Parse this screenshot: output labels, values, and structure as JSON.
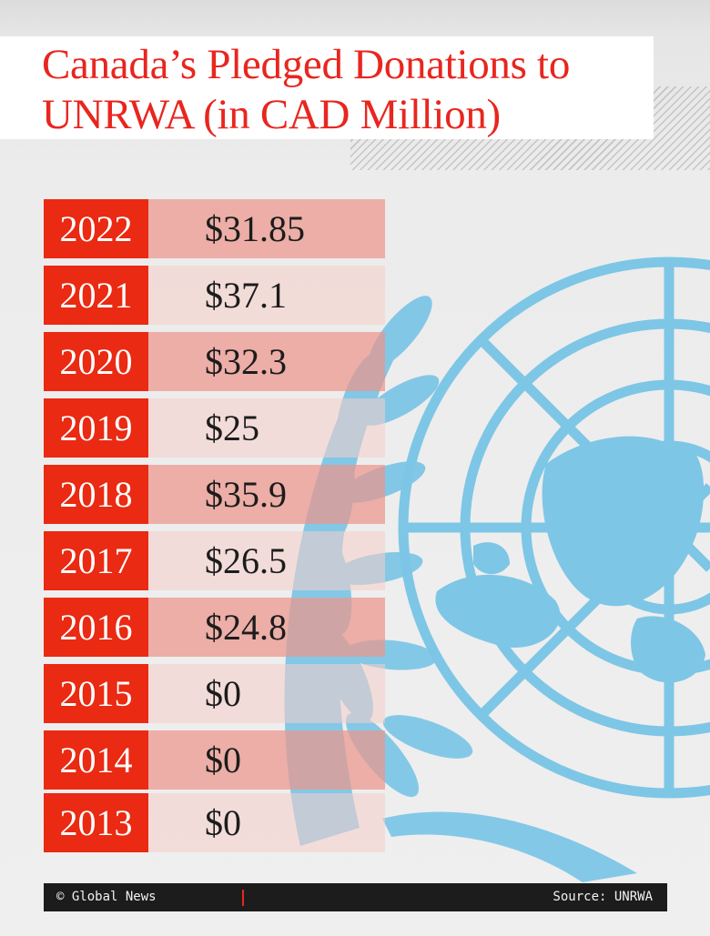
{
  "title": "Canada’s Pledged Donations to UNRWA (in CAD Million)",
  "rows": [
    {
      "year": "2022",
      "amount": "$31.85"
    },
    {
      "year": "2021",
      "amount": "$37.1"
    },
    {
      "year": "2020",
      "amount": "$32.3"
    },
    {
      "year": "2019",
      "amount": "$25"
    },
    {
      "year": "2018",
      "amount": "$35.9"
    },
    {
      "year": "2017",
      "amount": "$26.5"
    },
    {
      "year": "2016",
      "amount": "$24.8"
    },
    {
      "year": "2015",
      "amount": "$0"
    },
    {
      "year": "2014",
      "amount": "$0"
    },
    {
      "year": "2013",
      "amount": "$0"
    }
  ],
  "footer": {
    "credit": "© Global News",
    "source": "Source: UNRWA"
  },
  "colors": {
    "accent_red": "#ea2a12",
    "title_red": "#e8261f",
    "emblem_blue": "#7ec6e6",
    "footer_bg": "#1c1c1c"
  },
  "background_graphic": "un-emblem"
}
